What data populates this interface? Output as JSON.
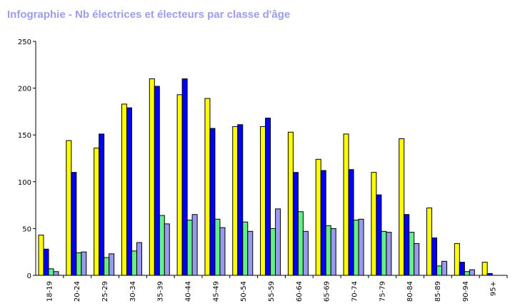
{
  "chart_data": {
    "type": "bar",
    "title": "Infographie - Nb électrices et électeurs par classe d'âge",
    "xlabel": "",
    "ylabel": "",
    "ylim": [
      0,
      250
    ],
    "yticks": [
      0,
      50,
      100,
      150,
      200,
      250
    ],
    "grid": false,
    "legend": "none",
    "categories": [
      "18-19",
      "20-24",
      "25-29",
      "30-34",
      "35-39",
      "40-44",
      "45-49",
      "50-54",
      "55-59",
      "60-64",
      "65-69",
      "70-74",
      "75-79",
      "80-84",
      "85-89",
      "90-94",
      "95+"
    ],
    "series": [
      {
        "color": "#ffff00",
        "values": [
          43,
          144,
          136,
          183,
          210,
          193,
          189,
          159,
          159,
          153,
          124,
          151,
          110,
          146,
          72,
          34,
          14
        ]
      },
      {
        "color": "#0000ff",
        "values": [
          28,
          110,
          151,
          179,
          202,
          210,
          157,
          161,
          168,
          110,
          112,
          113,
          86,
          65,
          40,
          14,
          2
        ]
      },
      {
        "color": "#66ee88",
        "values": [
          7,
          24,
          19,
          26,
          64,
          59,
          60,
          57,
          50,
          68,
          53,
          59,
          47,
          46,
          10,
          4,
          0
        ]
      },
      {
        "color": "#9999ee",
        "values": [
          4,
          25,
          23,
          35,
          55,
          65,
          51,
          47,
          71,
          47,
          50,
          60,
          46,
          34,
          15,
          6,
          0
        ]
      }
    ]
  }
}
